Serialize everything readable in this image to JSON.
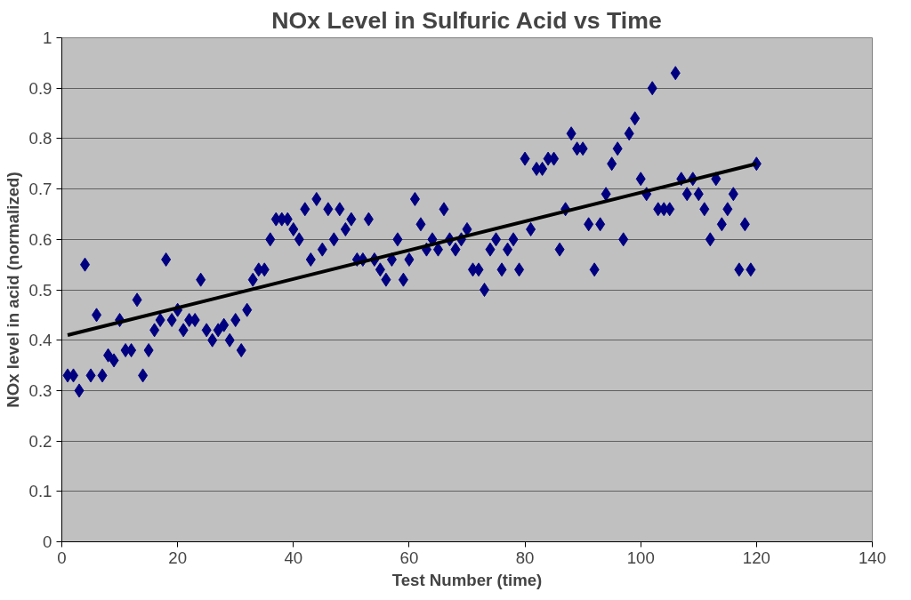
{
  "chart_data": {
    "type": "scatter",
    "title": "NOx Level in Sulfuric Acid vs Time",
    "xlabel": "Test Number (time)",
    "ylabel": "NOx level in acid (normalized)",
    "xlim": [
      0,
      140
    ],
    "xticks": [
      0,
      20,
      40,
      60,
      80,
      100,
      120,
      140
    ],
    "ylim": [
      0,
      1
    ],
    "yticks": [
      0,
      0.1,
      0.2,
      0.3,
      0.4,
      0.5,
      0.6,
      0.7,
      0.8,
      0.9,
      1
    ],
    "grid": "y",
    "series": [
      {
        "marker": "diamond",
        "color": "#000080",
        "x": [
          1,
          2,
          3,
          4,
          5,
          6,
          7,
          8,
          9,
          10,
          11,
          12,
          13,
          14,
          15,
          16,
          17,
          18,
          19,
          20,
          21,
          22,
          23,
          24,
          25,
          26,
          27,
          28,
          29,
          30,
          31,
          32,
          33,
          34,
          35,
          36,
          37,
          38,
          39,
          40,
          41,
          42,
          43,
          44,
          45,
          46,
          47,
          48,
          49,
          50,
          51,
          52,
          53,
          54,
          55,
          56,
          57,
          58,
          59,
          60,
          61,
          62,
          63,
          64,
          65,
          66,
          67,
          68,
          69,
          70,
          71,
          72,
          73,
          74,
          75,
          76,
          77,
          78,
          79,
          80,
          81,
          82,
          83,
          84,
          85,
          86,
          87,
          88,
          89,
          90,
          91,
          92,
          93,
          94,
          95,
          96,
          97,
          98,
          99,
          100,
          101,
          102,
          103,
          104,
          105,
          106,
          107,
          108,
          109,
          110,
          111,
          112,
          113,
          114,
          115,
          116,
          117,
          118,
          119,
          120
        ],
        "values": [
          0.33,
          0.33,
          0.3,
          0.55,
          0.33,
          0.45,
          0.33,
          0.37,
          0.36,
          0.44,
          0.38,
          0.38,
          0.48,
          0.33,
          0.38,
          0.42,
          0.44,
          0.56,
          0.44,
          0.46,
          0.42,
          0.44,
          0.44,
          0.52,
          0.42,
          0.4,
          0.42,
          0.43,
          0.4,
          0.44,
          0.38,
          0.46,
          0.52,
          0.54,
          0.54,
          0.6,
          0.64,
          0.64,
          0.64,
          0.62,
          0.6,
          0.66,
          0.56,
          0.68,
          0.58,
          0.66,
          0.6,
          0.66,
          0.62,
          0.64,
          0.56,
          0.56,
          0.64,
          0.56,
          0.54,
          0.52,
          0.56,
          0.6,
          0.52,
          0.56,
          0.68,
          0.63,
          0.58,
          0.6,
          0.58,
          0.66,
          0.6,
          0.58,
          0.6,
          0.62,
          0.54,
          0.54,
          0.5,
          0.58,
          0.6,
          0.54,
          0.58,
          0.6,
          0.54,
          0.76,
          0.62,
          0.74,
          0.74,
          0.76,
          0.76,
          0.58,
          0.66,
          0.81,
          0.78,
          0.78,
          0.63,
          0.54,
          0.63,
          0.69,
          0.75,
          0.78,
          0.6,
          0.81,
          0.84,
          0.72,
          0.69,
          0.9,
          0.66,
          0.66,
          0.66,
          0.93,
          0.72,
          0.69,
          0.72,
          0.69,
          0.66,
          0.6,
          0.72,
          0.63,
          0.66,
          0.69,
          0.54,
          0.63,
          0.54,
          0.75
        ]
      },
      {
        "type": "line",
        "color": "#000000",
        "x": [
          1,
          120
        ],
        "values": [
          0.41,
          0.75
        ]
      }
    ]
  }
}
